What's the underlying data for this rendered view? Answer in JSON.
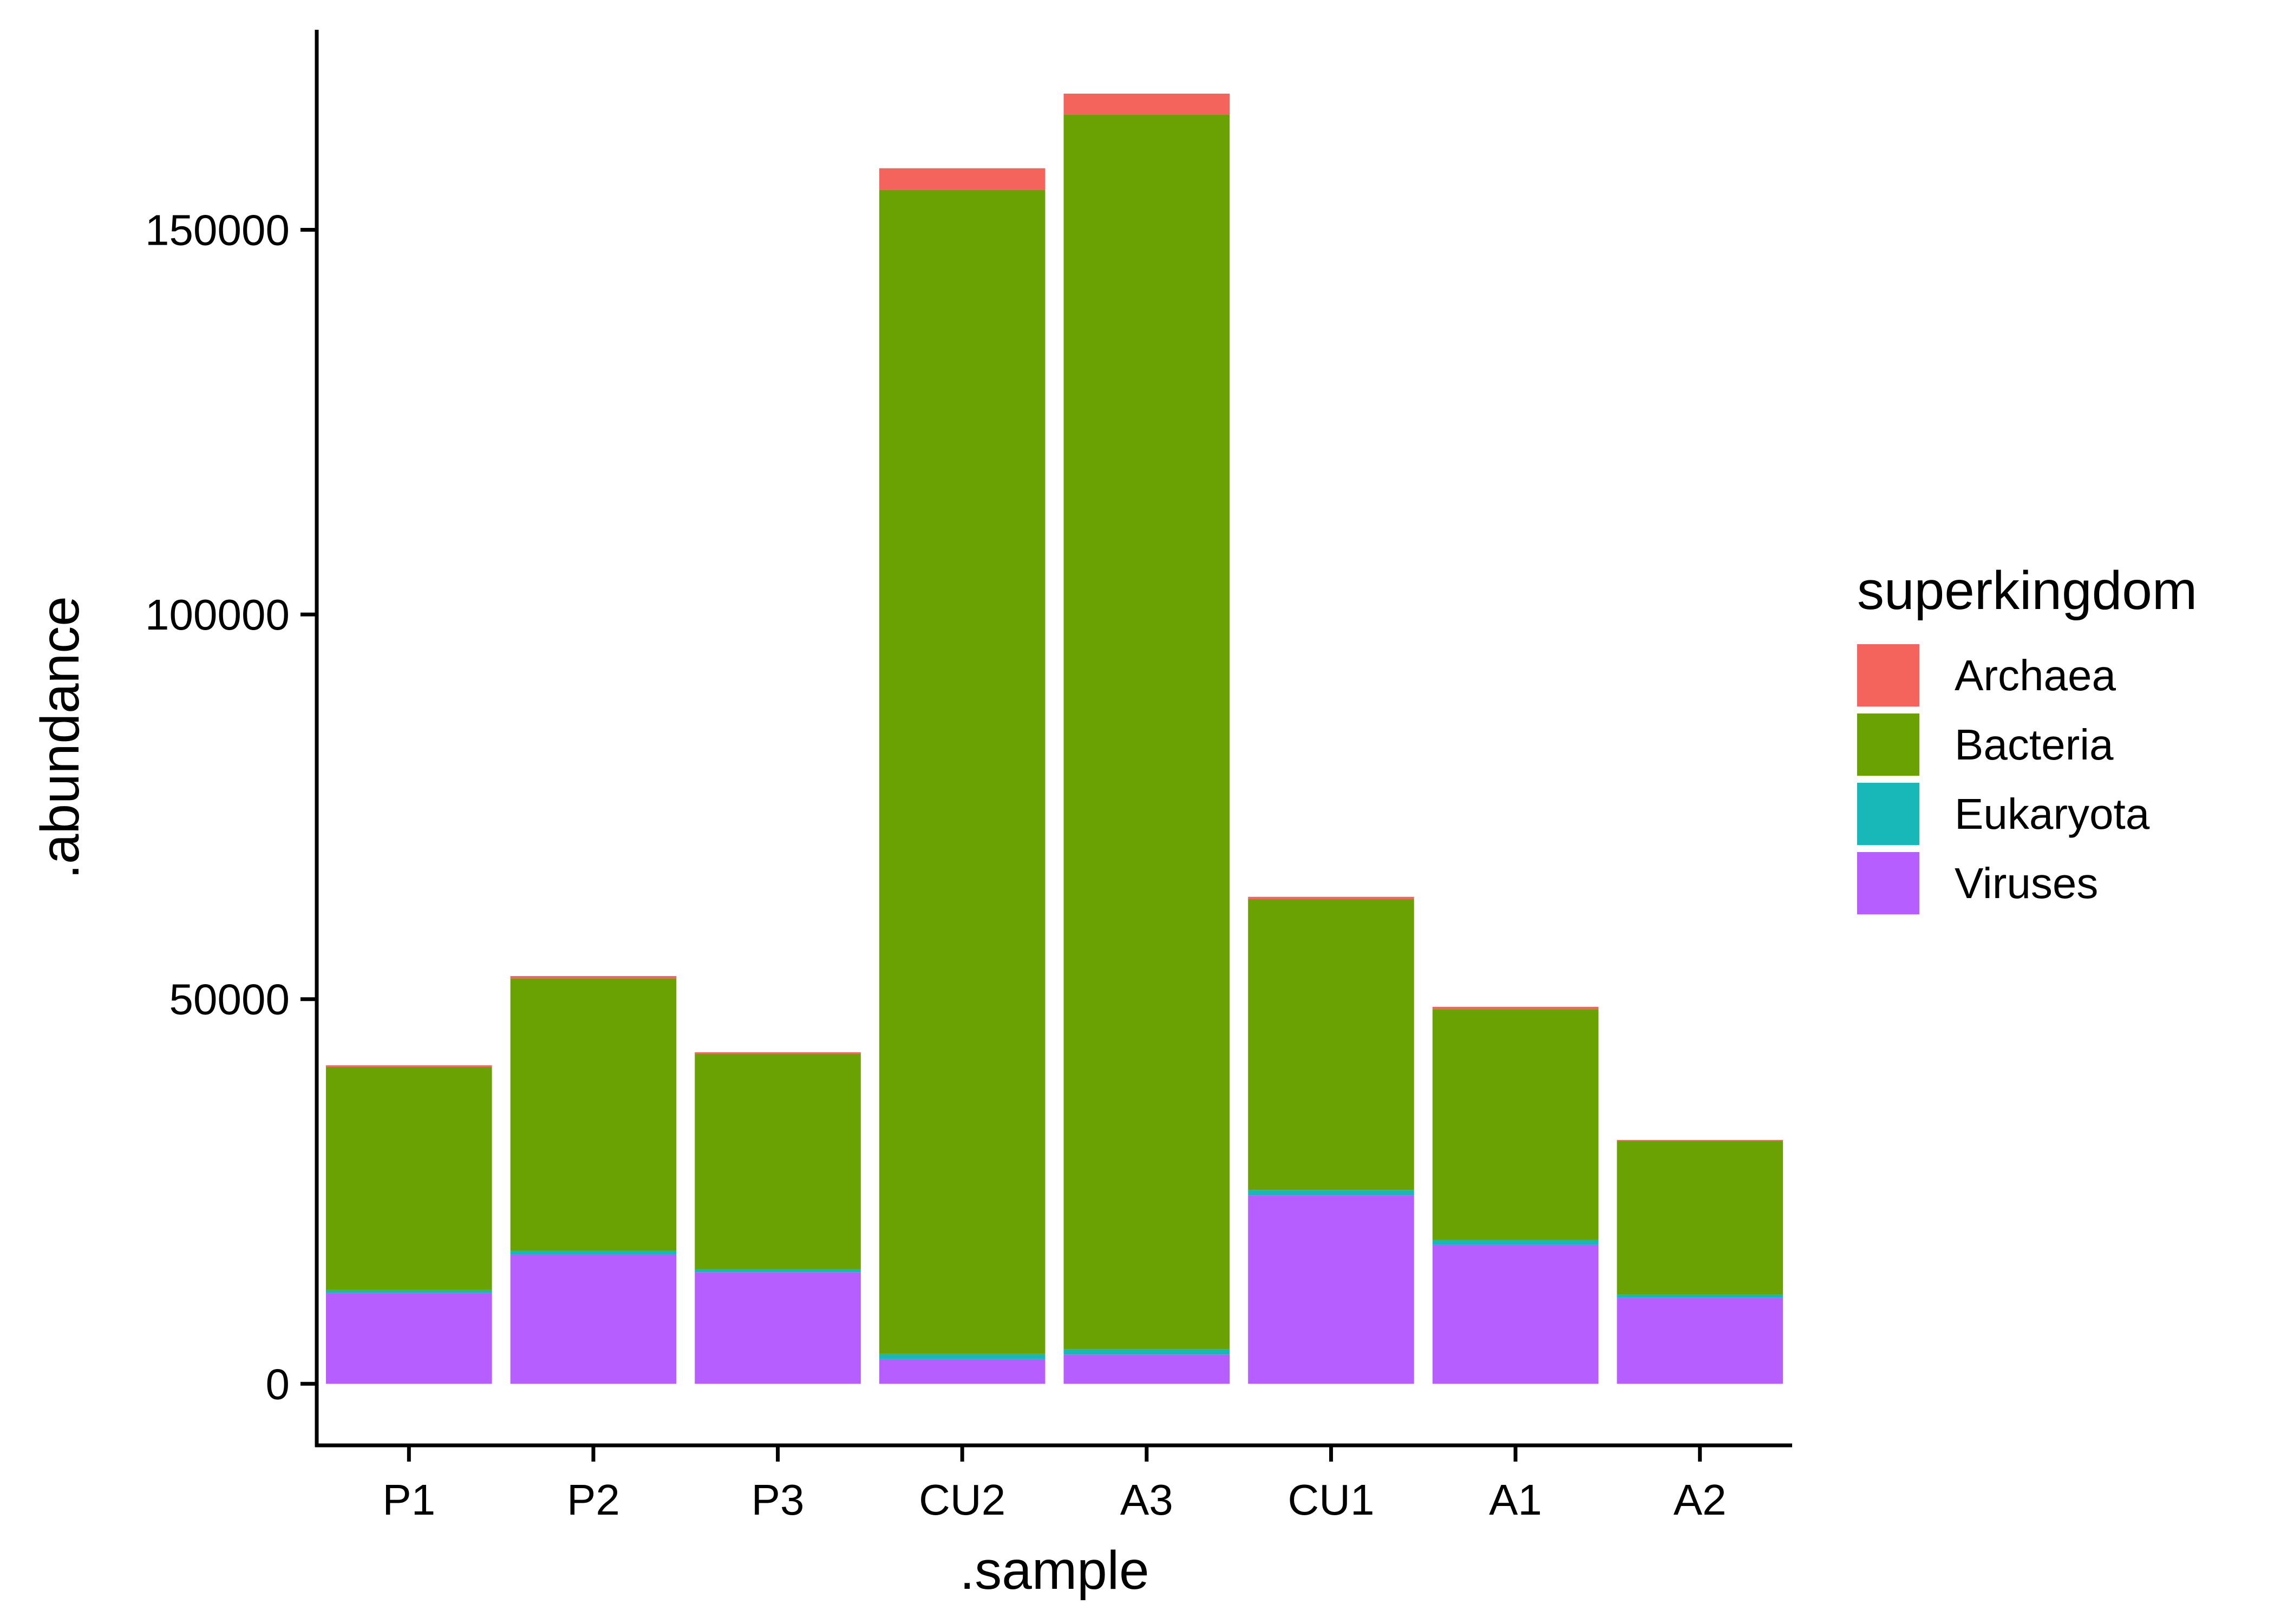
{
  "chart_data": {
    "type": "bar",
    "stacked": true,
    "title": "",
    "xlabel": ".sample",
    "ylabel": ".abundance",
    "ylim": [
      -8000,
      176000
    ],
    "yticks": [
      0,
      50000,
      100000,
      150000
    ],
    "grid": false,
    "legend_title": "superkingdom",
    "legend_position": "right",
    "categories": [
      "P1",
      "P2",
      "P3",
      "CU2",
      "A3",
      "CU1",
      "A1",
      "A2"
    ],
    "series": [
      {
        "name": "Viruses",
        "color": "#B65EFF",
        "values": [
          11800,
          16800,
          14500,
          3200,
          3800,
          24500,
          18100,
          11200
        ]
      },
      {
        "name": "Eukaryota",
        "color": "#18B8B8",
        "values": [
          400,
          500,
          400,
          700,
          700,
          700,
          600,
          400
        ]
      },
      {
        "name": "Bacteria",
        "color": "#6AA203",
        "values": [
          29000,
          35400,
          28000,
          151300,
          160500,
          37800,
          30000,
          20000
        ]
      },
      {
        "name": "Archaea",
        "color": "#F4645D",
        "values": [
          200,
          300,
          200,
          2800,
          2700,
          300,
          300,
          100
        ]
      }
    ],
    "legend_order": [
      "Archaea",
      "Bacteria",
      "Eukaryota",
      "Viruses"
    ]
  }
}
